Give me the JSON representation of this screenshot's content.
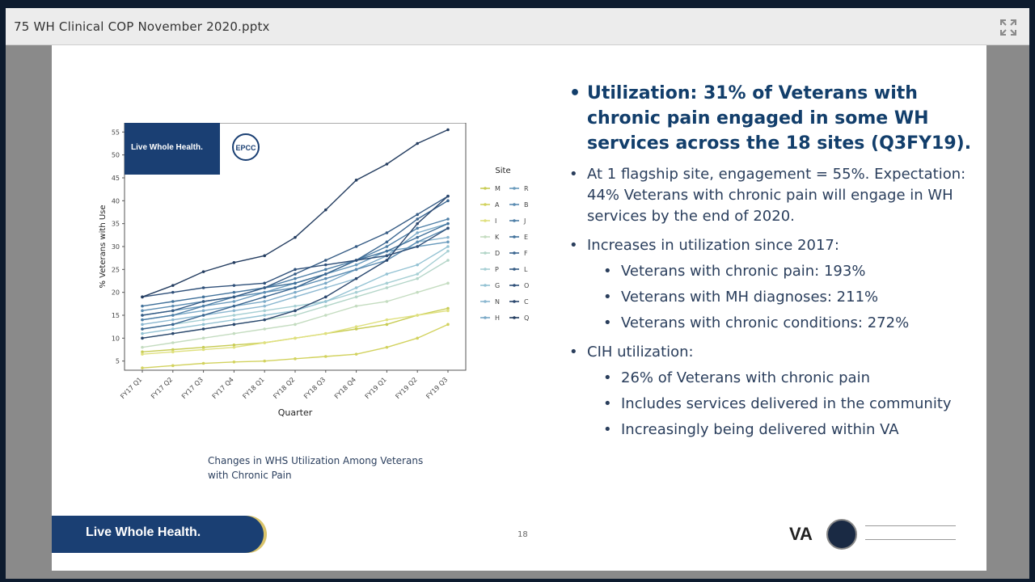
{
  "window": {
    "file_title": "75 WH Clinical COP November 2020.pptx",
    "expand_icon": "expand-icon"
  },
  "slide": {
    "chart_overlay": {
      "brand_label": "Live Whole Health.",
      "partner_logo": "EPCC"
    },
    "chart_data": {
      "type": "line",
      "ylabel": "% Veterans with Use",
      "xlabel": "Quarter",
      "legend_title": "Site",
      "legend_position": "right",
      "ylim": [
        3,
        57
      ],
      "yticks": [
        5,
        10,
        15,
        20,
        25,
        30,
        35,
        40,
        45,
        50,
        55
      ],
      "categories": [
        "FY17 Q1",
        "FY17 Q2",
        "FY17 Q3",
        "FY17 Q4",
        "FY18 Q1",
        "FY18 Q2",
        "FY18 Q3",
        "FY18 Q4",
        "FY19 Q1",
        "FY19 Q2",
        "FY19 Q3"
      ],
      "series": [
        {
          "name": "M",
          "color": "#c8cc55",
          "values": [
            7,
            7.5,
            8,
            8.5,
            9,
            10,
            11,
            12,
            13,
            15,
            16.5
          ]
        },
        {
          "name": "A",
          "color": "#d2d25e",
          "values": [
            3.5,
            4,
            4.5,
            4.8,
            5,
            5.5,
            6,
            6.5,
            8,
            10,
            13
          ]
        },
        {
          "name": "I",
          "color": "#dfe07e",
          "values": [
            6.5,
            7,
            7.5,
            8,
            9,
            10,
            11,
            12.5,
            14,
            15,
            16
          ]
        },
        {
          "name": "K",
          "color": "#c4dcc0",
          "values": [
            8,
            9,
            10,
            11,
            12,
            13,
            15,
            17,
            18,
            20,
            22
          ]
        },
        {
          "name": "D",
          "color": "#b3d5c8",
          "values": [
            10,
            11,
            12,
            13,
            14,
            15,
            17,
            19,
            21,
            23,
            27
          ]
        },
        {
          "name": "P",
          "color": "#a6cfd4",
          "values": [
            12,
            13,
            14,
            15,
            16,
            17,
            18,
            20,
            22,
            24,
            29
          ]
        },
        {
          "name": "G",
          "color": "#93c2d3",
          "values": [
            11,
            12,
            13,
            14,
            15,
            16,
            18,
            21,
            24,
            26,
            30
          ]
        },
        {
          "name": "N",
          "color": "#8bb7d0",
          "values": [
            13,
            14,
            15,
            16,
            17,
            19,
            21,
            23,
            27,
            31,
            32
          ]
        },
        {
          "name": "H",
          "color": "#7aa9c7",
          "values": [
            14,
            15,
            16,
            17,
            18,
            20,
            22,
            25,
            28,
            33,
            35
          ]
        },
        {
          "name": "R",
          "color": "#6a9bbd",
          "values": [
            15,
            16,
            17,
            18,
            20,
            22,
            24,
            26,
            29,
            30,
            31
          ]
        },
        {
          "name": "B",
          "color": "#5b8cb2",
          "values": [
            16,
            17,
            18,
            19,
            20,
            21,
            23,
            25,
            27,
            31,
            34
          ]
        },
        {
          "name": "J",
          "color": "#4e7fa7",
          "values": [
            14,
            15,
            17,
            19,
            21,
            23,
            25,
            27,
            30,
            34,
            36
          ]
        },
        {
          "name": "E",
          "color": "#42729b",
          "values": [
            17,
            18,
            19,
            20,
            21,
            22,
            24,
            27,
            29,
            32,
            35
          ]
        },
        {
          "name": "F",
          "color": "#3b6690",
          "values": [
            12,
            13,
            15,
            17,
            19,
            21,
            24,
            27,
            31,
            36,
            40
          ]
        },
        {
          "name": "L",
          "color": "#355b84",
          "values": [
            15,
            16,
            18,
            19,
            21,
            24,
            27,
            30,
            33,
            37,
            41
          ]
        },
        {
          "name": "O",
          "color": "#2f5079",
          "values": [
            19,
            20,
            21,
            21.5,
            22,
            25,
            26,
            27,
            28,
            30,
            34
          ]
        },
        {
          "name": "C",
          "color": "#2a466d",
          "values": [
            10,
            11,
            12,
            13,
            14,
            16,
            19,
            23,
            27,
            35,
            41
          ]
        },
        {
          "name": "Q",
          "color": "#243d60",
          "values": [
            19,
            21.5,
            24.5,
            26.5,
            28,
            32,
            38,
            44.5,
            48,
            52.5,
            55.5
          ]
        }
      ]
    },
    "caption": "Changes in WHS Utilization Among Veterans with Chronic Pain",
    "headline": "Utilization:  31% of Veterans with chronic pain engaged in some WH services across the 18 sites (Q3FY19).",
    "flagship": "At 1 flagship site, engagement = 55%. Expectation:  44% Veterans with chronic pain will engage in WH services by the end of 2020.",
    "increases_label": "Increases in utilization since 2017:",
    "increases": [
      "Veterans with chronic pain: 193%",
      "Veterans with MH diagnoses: 211%",
      "Veterans with chronic conditions: 272%"
    ],
    "cih_label": "CIH utilization:",
    "cih": [
      "26% of Veterans with chronic pain",
      "Includes services delivered in the community",
      "Increasingly being delivered within VA"
    ],
    "footer": {
      "brand": "Live Whole Health.",
      "page_number": "18",
      "va_label": "VA",
      "va_seal_icon": "va-seal-icon"
    }
  }
}
